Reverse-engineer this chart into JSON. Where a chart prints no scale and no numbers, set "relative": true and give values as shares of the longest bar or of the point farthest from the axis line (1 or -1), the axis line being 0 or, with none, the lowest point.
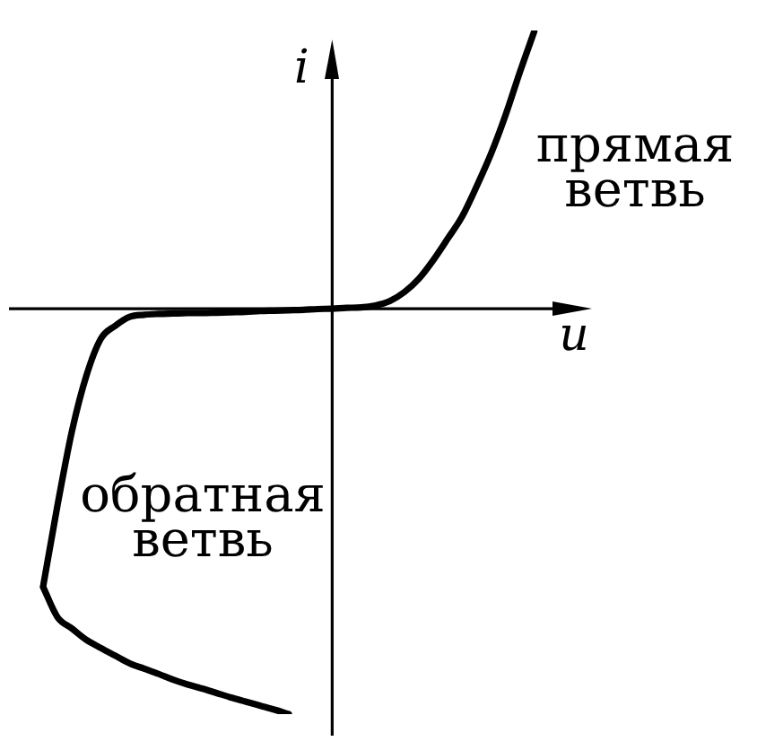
{
  "chart_data": {
    "type": "line",
    "relative": true,
    "xlabel": "u",
    "ylabel": "i",
    "marker": "none",
    "categories": [
      null,
      null,
      null,
      null,
      null,
      null,
      null,
      null,
      null,
      null,
      null,
      null,
      null,
      null,
      null,
      null,
      null,
      null,
      null,
      null,
      null,
      null,
      null,
      null,
      null,
      null,
      null,
      null,
      null,
      null,
      null,
      null,
      null,
      null,
      null
    ],
    "series": [
      {
        "color": "#000000",
        "values": [
          -0.686,
          -0.761,
          -0.789,
          -0.817,
          -0.837,
          -0.856,
          -0.875,
          -0.888,
          -0.901,
          -0.915,
          -0.927,
          -0.937,
          -0.948,
          -0.959,
          -0.969,
          -0.979,
          -0.989,
          -1,
          null,
          null,
          null,
          null,
          null,
          null,
          null,
          null,
          null,
          null,
          null,
          null,
          null,
          null,
          null,
          null,
          null
        ]
      },
      {
        "color": "#000000",
        "values": [
          -0.686,
          -0.485,
          -0.302,
          -0.165,
          -0.074,
          -0.042,
          -0.02,
          -0.015,
          -0.013,
          -0.012,
          -0.011,
          -0.011,
          -0.01,
          -0.009,
          -0.008,
          -0.006,
          -0.005,
          -0.004,
          -0.003,
          -0.001,
          0,
          0.002,
          0.003,
          0.008,
          0.019,
          0.041,
          0.074,
          0.12,
          0.173,
          0.228,
          0.302,
          0.383,
          0.478,
          0.585,
          0.686
        ]
      }
    ],
    "annotations": [
      "прямая\nветвь",
      "обратная\nветвь"
    ]
  }
}
